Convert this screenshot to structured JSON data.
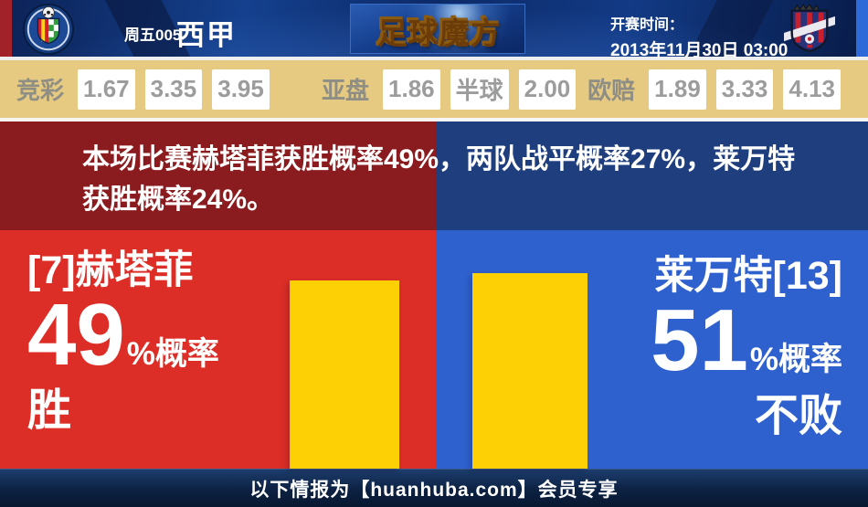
{
  "header": {
    "match_label": "周五005",
    "league": "西甲",
    "site_logo": "足球魔方",
    "kickoff_label": "开赛时间：",
    "kickoff_time": "2013年11月30日 03:00",
    "home_crest": "getafe-crest",
    "away_crest": "levante-crest"
  },
  "odds": {
    "jingcai": {
      "label": "竞彩",
      "values": [
        "1.67",
        "3.35",
        "3.95"
      ]
    },
    "yapan": {
      "label": "亚盘",
      "values": [
        "1.86",
        "半球",
        "2.00"
      ]
    },
    "oupei": {
      "label": "欧赔",
      "values": [
        "1.89",
        "3.33",
        "4.13"
      ]
    }
  },
  "prediction": {
    "summary": "本场比赛赫塔菲获胜概率49%，两队战平概率27%，莱万特获胜概率24%。",
    "home": {
      "name": "[7]赫塔菲",
      "percent": "49",
      "percent_suffix": "%概率",
      "outcome": "胜",
      "value": 49
    },
    "away": {
      "name": "莱万特[13]",
      "percent": "51",
      "percent_suffix": "%概率",
      "outcome": "不败",
      "value": 51
    }
  },
  "footer": {
    "text": "以下情报为【huanhuba.com】会员专享"
  },
  "colors": {
    "home_dark": "#8a1b1e",
    "home_bright": "#dc2d27",
    "away_dark": "#1e3e7d",
    "away_bright": "#2e60ce",
    "bar_yellow": "#fdd005",
    "odds_bg": "#e7ca81",
    "logo_gold": "#ffd21c"
  }
}
